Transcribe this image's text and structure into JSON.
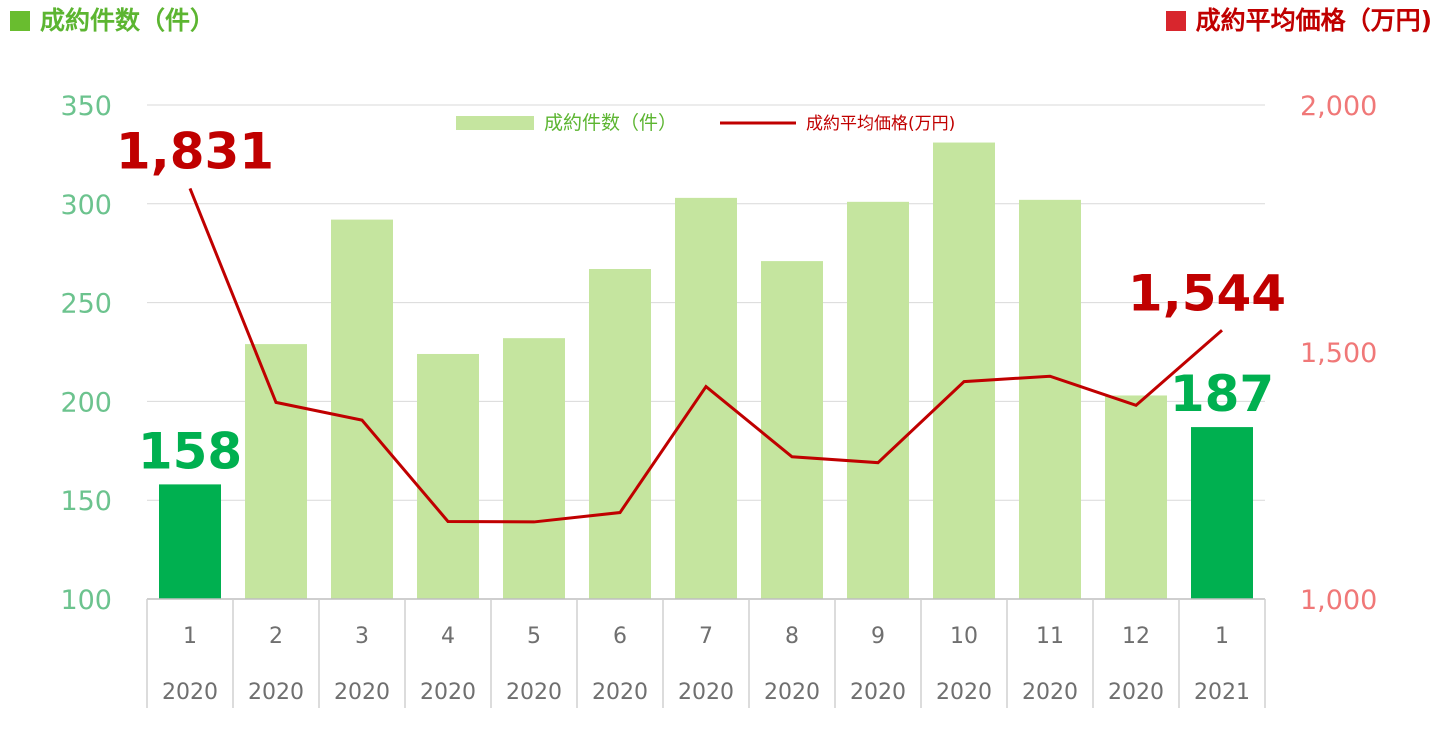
{
  "header": {
    "left_title": "成約件数（件）",
    "right_title": "成約平均価格（万円)"
  },
  "colors": {
    "bar_light": "#c5e59f",
    "bar_highlight": "#00b050",
    "line": "#c00000",
    "left_axis_text": "#6cc38e",
    "right_axis_text": "#f07878",
    "header_green": "#5cb531",
    "header_red": "#c00000"
  },
  "chart_data": {
    "type": "bar",
    "categories": [
      "1",
      "2",
      "3",
      "4",
      "5",
      "6",
      "7",
      "8",
      "9",
      "10",
      "11",
      "12",
      "1"
    ],
    "years": [
      "2020",
      "2020",
      "2020",
      "2020",
      "2020",
      "2020",
      "2020",
      "2020",
      "2020",
      "2020",
      "2020",
      "2020",
      "2021"
    ],
    "series": [
      {
        "name": "成約件数（件）",
        "type": "bar",
        "axis": "left",
        "values": [
          158,
          229,
          292,
          224,
          232,
          267,
          303,
          271,
          301,
          331,
          302,
          203,
          187
        ],
        "highlight": [
          0,
          12
        ]
      },
      {
        "name": "成約平均価格(万円)",
        "type": "line",
        "axis": "right",
        "values": [
          1831,
          1398,
          1362,
          1157,
          1156,
          1175,
          1430,
          1288,
          1276,
          1440,
          1451,
          1392,
          1544
        ]
      }
    ],
    "y_left": {
      "range": [
        100,
        350
      ],
      "ticks": [
        "100",
        "150",
        "200",
        "250",
        "300",
        "350"
      ]
    },
    "y_right": {
      "range": [
        1000,
        2000
      ],
      "ticks": [
        "1,000",
        "1,500",
        "2,000"
      ]
    },
    "data_labels": {
      "bars": [
        {
          "index": 0,
          "text": "158"
        },
        {
          "index": 12,
          "text": "187"
        }
      ],
      "line": [
        {
          "index": 0,
          "text": "1,831"
        },
        {
          "index": 12,
          "text": "1,544"
        }
      ]
    },
    "grid": true,
    "legend_position": "top-center"
  }
}
